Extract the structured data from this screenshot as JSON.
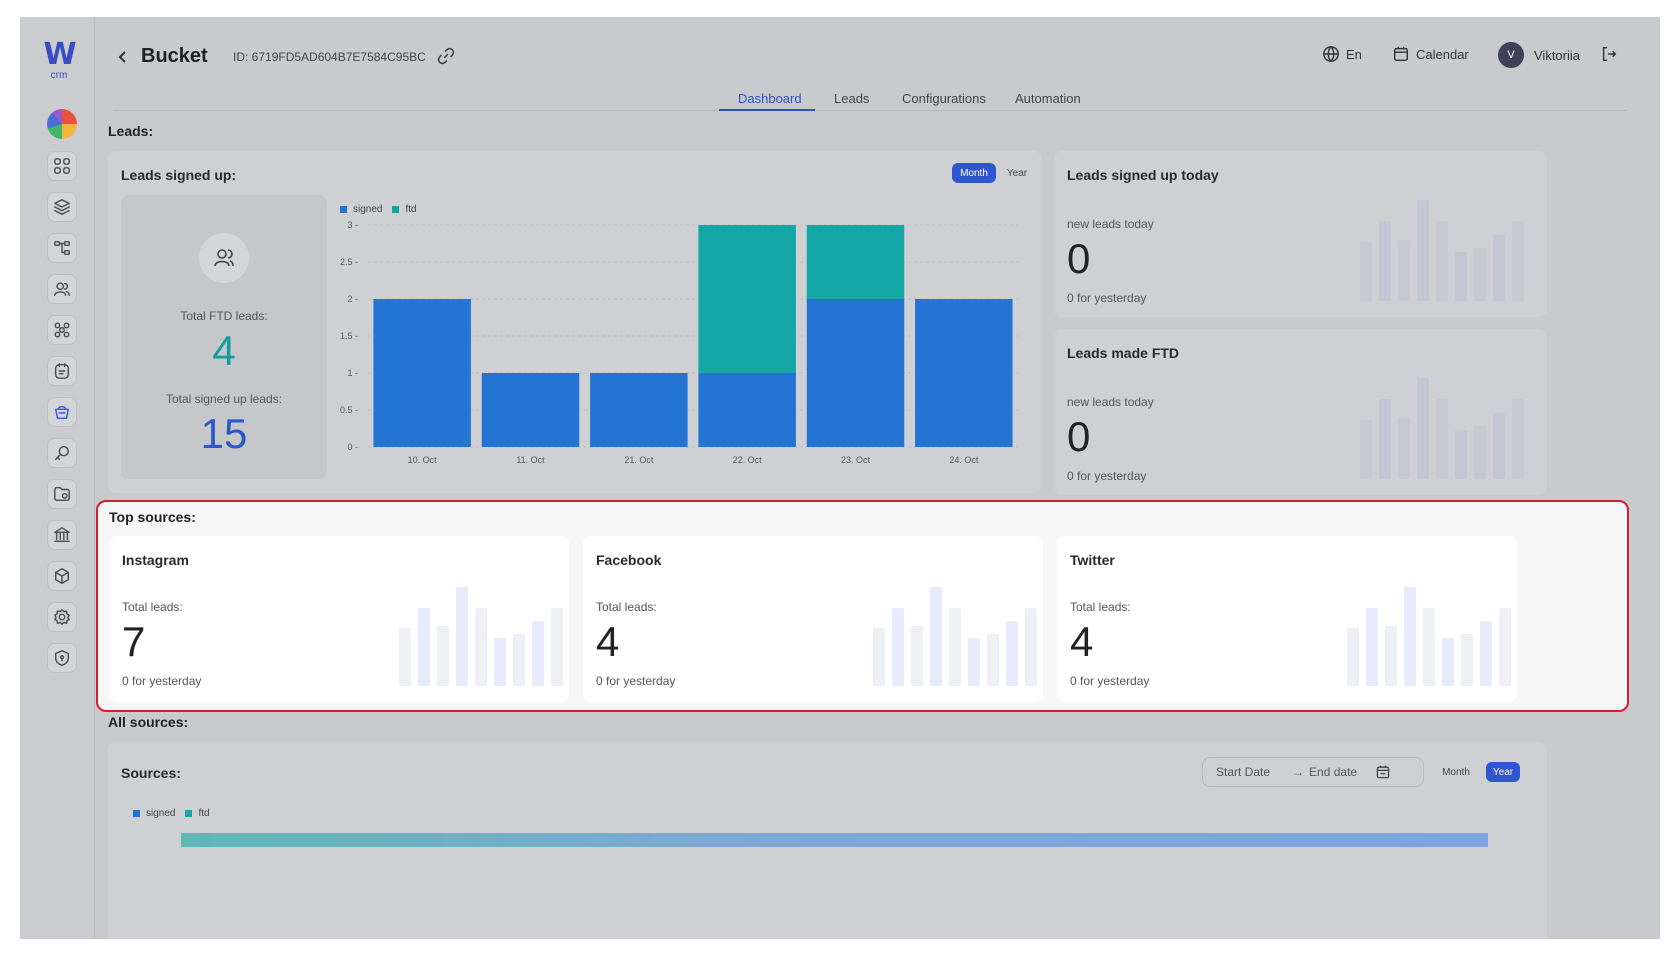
{
  "brand": {
    "logo_text": "W",
    "logo_sub": "crm"
  },
  "header": {
    "title": "Bucket",
    "bucket_id": "ID: 6719FD5AD604B7E7584C95BC",
    "language": "En",
    "calendar_label": "Calendar",
    "avatar_initial": "V",
    "user_name": "Viktoriia"
  },
  "tabs": [
    {
      "label": "Dashboard",
      "active": true
    },
    {
      "label": "Leads",
      "active": false
    },
    {
      "label": "Configurations",
      "active": false
    },
    {
      "label": "Automation",
      "active": false
    }
  ],
  "sidebar_icons": [
    "dashboard-icon",
    "layers-icon",
    "hierarchy-icon",
    "users-icon",
    "network-icon",
    "tasks-icon",
    "bucket-icon",
    "key-icon",
    "folder-icon",
    "bank-icon",
    "cube-icon",
    "settings-icon",
    "shield-icon"
  ],
  "leads_section": {
    "label": "Leads:"
  },
  "signed_up_card": {
    "title": "Leads signed up:",
    "total_ftd_label": "Total FTD leads:",
    "total_ftd_value": "4",
    "total_signed_label": "Total signed up leads:",
    "total_signed_value": "15",
    "period_month": "Month",
    "period_year": "Year",
    "legend_signed": "signed",
    "legend_ftd": "ftd"
  },
  "chart_data": {
    "type": "bar",
    "stacked": true,
    "categories": [
      "10. Oct",
      "11. Oct",
      "21. Oct",
      "22. Oct",
      "23. Oct",
      "24. Oct"
    ],
    "series": [
      {
        "name": "signed",
        "values": [
          2,
          1,
          1,
          1,
          2,
          2
        ],
        "color": "#2474d3"
      },
      {
        "name": "ftd",
        "values": [
          0,
          0,
          0,
          2,
          1,
          0
        ],
        "color": "#14a7a5"
      }
    ],
    "yticks": [
      "0",
      "0.5",
      "1",
      "1.5",
      "2",
      "2.5",
      "3"
    ],
    "ylim": [
      0,
      3
    ],
    "grid": true,
    "legend": "top-left"
  },
  "today_card": {
    "title": "Leads signed up today",
    "label": "new leads today",
    "value": "0",
    "sub": "0 for yesterday"
  },
  "ftd_card": {
    "title": "Leads made FTD",
    "label": "new leads today",
    "value": "0",
    "sub": "0 for yesterday"
  },
  "top_sources": {
    "label": "Top sources:",
    "cards": [
      {
        "name": "Instagram",
        "label": "Total leads:",
        "value": "7",
        "sub": "0 for yesterday"
      },
      {
        "name": "Facebook",
        "label": "Total leads:",
        "value": "4",
        "sub": "0 for yesterday"
      },
      {
        "name": "Twitter",
        "label": "Total leads:",
        "value": "4",
        "sub": "0 for yesterday"
      }
    ]
  },
  "all_sources": {
    "label": "All sources:",
    "card_title": "Sources:",
    "start_placeholder": "Start Date",
    "arrow": "→",
    "end_placeholder": "End date",
    "period_month": "Month",
    "period_year": "Year",
    "legend_signed": "signed",
    "legend_ftd": "ftd"
  },
  "colors": {
    "accent": "#2f56d0",
    "signed": "#2474d3",
    "ftd": "#14a7a5",
    "highlight_border": "#d81e2a"
  }
}
